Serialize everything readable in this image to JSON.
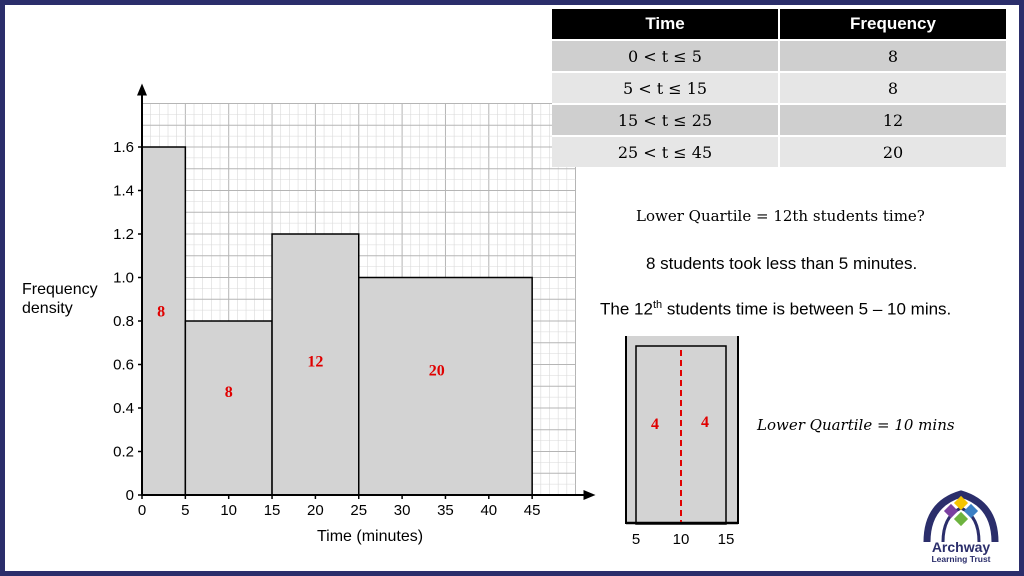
{
  "table": {
    "headers": [
      "Time",
      "Frequency"
    ],
    "rows": [
      {
        "time": "0 < t ≤ 5",
        "freq": "8"
      },
      {
        "time": "5 < t ≤ 15",
        "freq": "8"
      },
      {
        "time": "15 < t ≤ 25",
        "freq": "12"
      },
      {
        "time": "25 < t ≤ 45",
        "freq": "20"
      }
    ]
  },
  "notes": {
    "lq_question": "Lower Quartile = 12th students time?",
    "line2": "8 students took less than 5 minutes.",
    "line3_a": "The 12",
    "line3_sup": "th",
    "line3_b": " students time is between 5 – 10 mins.",
    "lq_answer": "Lower Quartile = 10 mins"
  },
  "chart_data": {
    "type": "bar",
    "xlabel": "Time (minutes)",
    "ylabel": "Frequency density",
    "xlim": [
      0,
      50
    ],
    "ylim": [
      0,
      1.8
    ],
    "xticks": [
      "0",
      "5",
      "10",
      "15",
      "20",
      "25",
      "30",
      "35",
      "40",
      "45"
    ],
    "yticks": [
      "0",
      "0.2",
      "0.4",
      "0.6",
      "0.8",
      "1.0",
      "1.2",
      "1.4",
      "1.6"
    ],
    "bars": [
      {
        "x0": 0,
        "x1": 5,
        "height": 1.6,
        "label": "8"
      },
      {
        "x0": 5,
        "x1": 15,
        "height": 0.8,
        "label": "8"
      },
      {
        "x0": 15,
        "x1": 25,
        "height": 1.2,
        "label": "12"
      },
      {
        "x0": 25,
        "x1": 45,
        "height": 1.0,
        "label": "20"
      }
    ],
    "grid": true
  },
  "zoom": {
    "xticks": [
      "5",
      "10",
      "15"
    ],
    "left_label": "4",
    "right_label": "4"
  },
  "logo": {
    "name": "Archway",
    "subtitle": "Learning Trust"
  },
  "colors": {
    "frame": "#2b2e6b",
    "bar_fill": "#d3d3d3",
    "annotation": "#e00000",
    "grid_minor": "#d9d9d9",
    "grid_major": "#b5b5b5"
  }
}
